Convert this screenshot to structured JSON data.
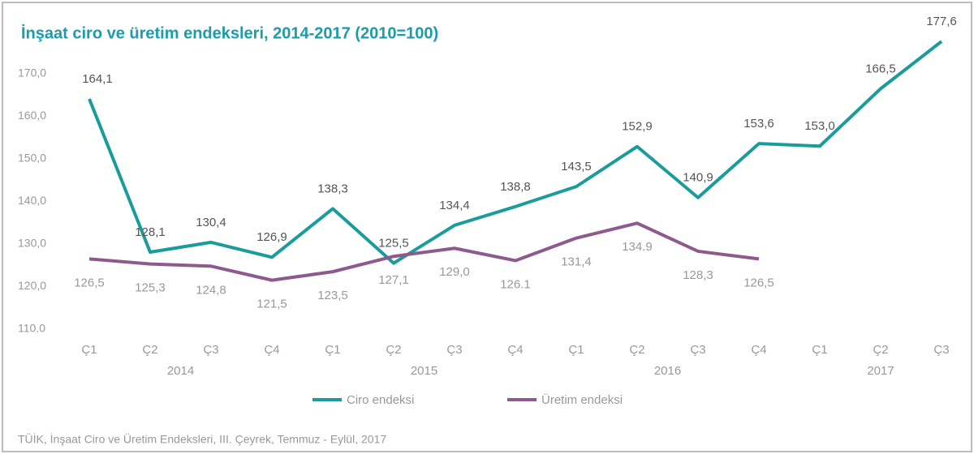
{
  "chart_data": {
    "type": "line",
    "title": "İnşaat ciro ve üretim endeksleri, 2014-2017 (2010=100)",
    "categories": [
      "Ç1",
      "Ç2",
      "Ç3",
      "Ç4",
      "Ç1",
      "Ç2",
      "Ç3",
      "Ç4",
      "Ç1",
      "Ç2",
      "Ç3",
      "Ç4",
      "Ç1",
      "Ç2",
      "Ç3"
    ],
    "years": [
      "2014",
      "2015",
      "2016",
      "2017"
    ],
    "series": [
      {
        "name": "Ciro endeksi",
        "color": "#1b9c9c",
        "values": [
          164.1,
          128.1,
          130.4,
          126.9,
          138.3,
          125.5,
          134.4,
          138.8,
          143.5,
          152.9,
          140.9,
          153.6,
          153.0,
          166.5,
          177.6
        ],
        "value_labels": [
          "164,1",
          "128,1",
          "130,4",
          "126,9",
          "138,3",
          "125,5",
          "134,4",
          "138,8",
          "143,5",
          "152,9",
          "140,9",
          "153,6",
          "153,0",
          "166,5",
          "177,6"
        ]
      },
      {
        "name": "Üretim endeksi",
        "color": "#8e5a8e",
        "values": [
          126.5,
          125.3,
          124.8,
          121.5,
          123.5,
          127.1,
          129.0,
          126.1,
          131.4,
          134.9,
          128.3,
          126.5,
          null,
          null,
          null
        ],
        "value_labels": [
          "126,5",
          "125,3",
          "124,8",
          "121,5",
          "123,5",
          "127,1",
          "129,0",
          "126.1",
          "131,4",
          "134.9",
          "128,3",
          "126,5",
          null,
          null,
          null
        ]
      }
    ],
    "ylim": [
      110,
      180
    ],
    "yticks": [
      {
        "value": 110,
        "label": "110.0"
      },
      {
        "value": 120,
        "label": "120,0"
      },
      {
        "value": 130,
        "label": "130,0"
      },
      {
        "value": 140,
        "label": "140,0"
      },
      {
        "value": 150,
        "label": "150,0"
      },
      {
        "value": 160,
        "label": "160,0"
      },
      {
        "value": 170,
        "label": "170,0"
      }
    ],
    "grid": false,
    "legend": "bottom",
    "source": "TÜİK, İnşaat Ciro ve Üretim Endeksleri, III. Çeyrek, Temmuz - Eylül, 2017"
  }
}
